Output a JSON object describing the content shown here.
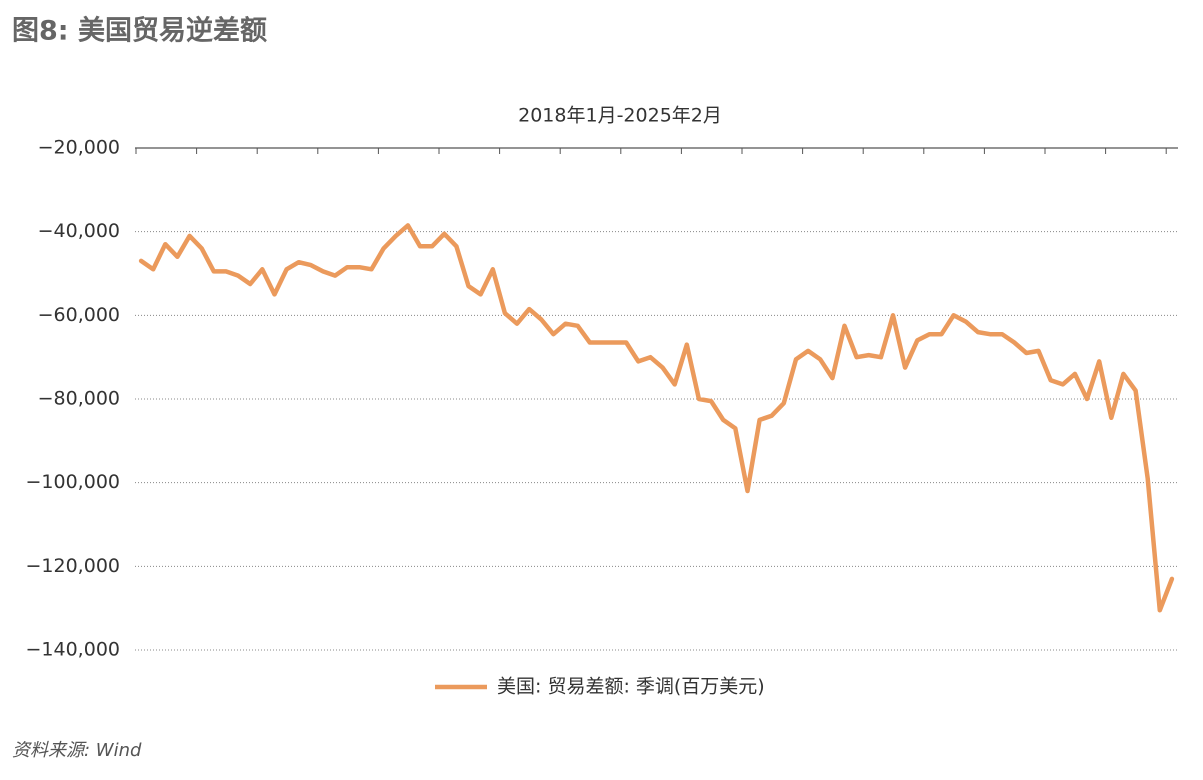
{
  "chart_data": {
    "type": "line",
    "title": "图8: 美国贸易逆差额",
    "subtitle": "2018年1月-2025年2月",
    "source": "资料来源: Wind",
    "categories": [
      null,
      null,
      null,
      null,
      null,
      null,
      null,
      null,
      null,
      null,
      null,
      null,
      null,
      null,
      null,
      null,
      null,
      null,
      null,
      null,
      null,
      null,
      null,
      null,
      null,
      null,
      null,
      null,
      null,
      null,
      null,
      null,
      null,
      null,
      null,
      null,
      null,
      null,
      null,
      null,
      null,
      null,
      null,
      null,
      null,
      null,
      null,
      null,
      null,
      null,
      null,
      null,
      null,
      null,
      null,
      null,
      null,
      null,
      null,
      null,
      null,
      null,
      null,
      null,
      null,
      null,
      null,
      null,
      null,
      null,
      null,
      null,
      null,
      null,
      null,
      null,
      null,
      null,
      null,
      null,
      null,
      null,
      null,
      null,
      null,
      null
    ],
    "series": [
      {
        "name": "美国: 贸易差额: 季调(百万美元)",
        "color": "#eb9a5c",
        "values": [
          -47000,
          -49000,
          -43000,
          -46000,
          -41000,
          -44000,
          -49500,
          -49500,
          -50500,
          -52500,
          -49000,
          -55000,
          -49000,
          -47300,
          -48000,
          -49500,
          -50500,
          -48500,
          -48500,
          -49000,
          -44000,
          -41000,
          -38500,
          -43500,
          -43500,
          -40500,
          -43500,
          -53000,
          -55000,
          -49000,
          -59500,
          -62000,
          -58500,
          -61000,
          -64500,
          -62000,
          -62500,
          -66500,
          -66500,
          -66500,
          -66500,
          -71000,
          -70000,
          -72500,
          -76500,
          -67000,
          -80000,
          -80500,
          -85000,
          -87000,
          -102000,
          -85000,
          -84000,
          -81000,
          -70500,
          -68500,
          -70500,
          -75000,
          -62500,
          -70000,
          -69500,
          -70000,
          -60000,
          -72500,
          -66000,
          -64500,
          -64500,
          -60000,
          -61500,
          -64000,
          -64500,
          -64500,
          -66500,
          -69000,
          -68500,
          -75500,
          -76500,
          -74000,
          -80000,
          -71000,
          -84500,
          -74000,
          -78000,
          -99000,
          -130500,
          -123000
        ]
      }
    ],
    "ylim": [
      -140000,
      -20000
    ],
    "yticks": [
      {
        "value": -20000,
        "label": "−20,000"
      },
      {
        "value": -40000,
        "label": "−40,000"
      },
      {
        "value": -60000,
        "label": "−60,000"
      },
      {
        "value": -80000,
        "label": "−80,000"
      },
      {
        "value": -100000,
        "label": "−100,000"
      },
      {
        "value": -120000,
        "label": "−120,000"
      },
      {
        "value": -140000,
        "label": "−140,000"
      }
    ],
    "grid": true
  }
}
